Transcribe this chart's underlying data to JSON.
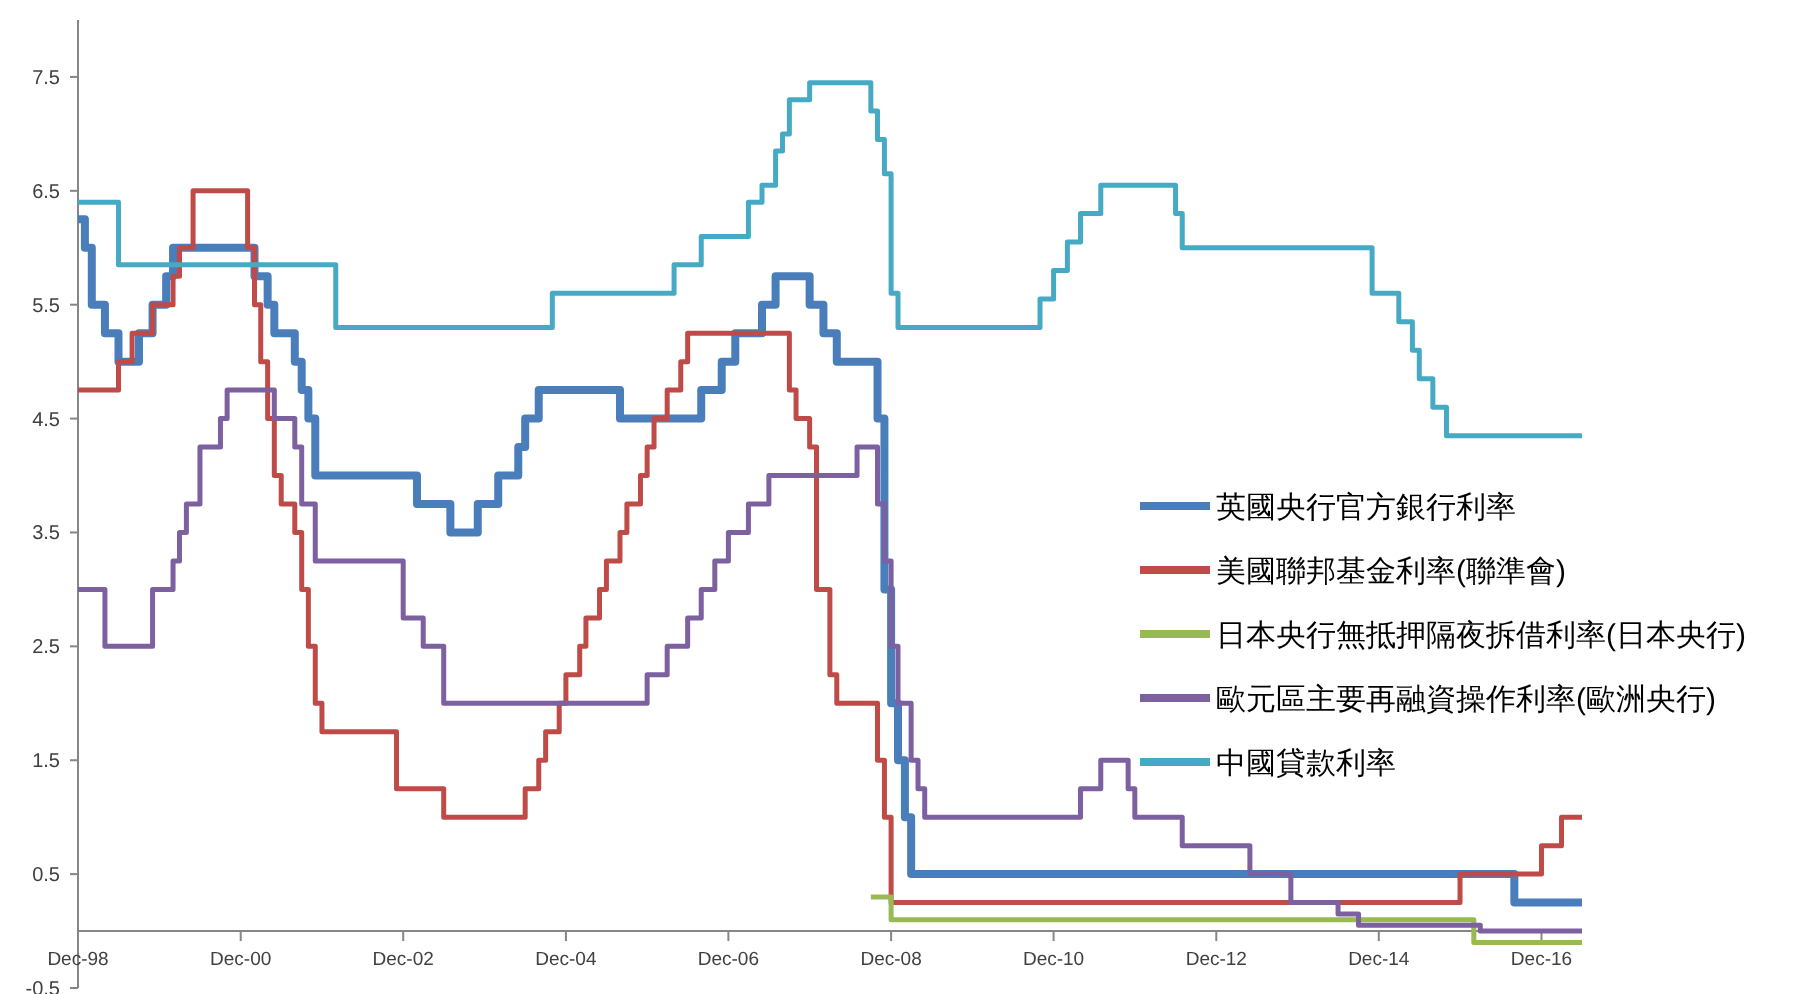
{
  "chart_data": {
    "type": "step",
    "legend": "right",
    "xlim": [
      "1998-12",
      "2017-06"
    ],
    "xticks": [
      {
        "value": "1998-12",
        "label": "Dec-98"
      },
      {
        "value": "2000-12",
        "label": "Dec-00"
      },
      {
        "value": "2002-12",
        "label": "Dec-02"
      },
      {
        "value": "2004-12",
        "label": "Dec-04"
      },
      {
        "value": "2006-12",
        "label": "Dec-06"
      },
      {
        "value": "2008-12",
        "label": "Dec-08"
      },
      {
        "value": "2010-12",
        "label": "Dec-10"
      },
      {
        "value": "2012-12",
        "label": "Dec-12"
      },
      {
        "value": "2014-12",
        "label": "Dec-14"
      },
      {
        "value": "2016-12",
        "label": "Dec-16"
      }
    ],
    "ylim": [
      -0.5,
      8
    ],
    "yticks": [
      -0.5,
      0.5,
      1.5,
      2.5,
      3.5,
      4.5,
      5.5,
      6.5,
      7.5
    ],
    "series": [
      {
        "name": "英國央行官方銀行利率",
        "color": "#4a7ebb",
        "x": [
          "1998-12",
          "1999-01",
          "1999-02",
          "1999-04",
          "1999-06",
          "1999-09",
          "1999-11",
          "2000-01",
          "2000-02",
          "2001-02",
          "2001-04",
          "2001-05",
          "2001-08",
          "2001-09",
          "2001-10",
          "2001-11",
          "2003-02",
          "2003-07",
          "2003-11",
          "2004-02",
          "2004-05",
          "2004-06",
          "2004-08",
          "2005-08",
          "2006-08",
          "2006-11",
          "2007-01",
          "2007-05",
          "2007-07",
          "2007-12",
          "2008-02",
          "2008-04",
          "2008-10",
          "2008-11",
          "2008-12",
          "2009-01",
          "2009-02",
          "2009-03",
          "2016-08",
          "2017-06"
        ],
        "values": [
          6.25,
          6,
          5.5,
          5.25,
          5,
          5.25,
          5.5,
          5.75,
          6,
          5.75,
          5.5,
          5.25,
          5,
          4.75,
          4.5,
          4,
          3.75,
          3.5,
          3.75,
          4,
          4.25,
          4.5,
          4.75,
          4.5,
          4.75,
          5,
          5.25,
          5.5,
          5.75,
          5.5,
          5.25,
          5,
          4.5,
          3,
          2,
          1.5,
          1,
          0.5,
          0.25,
          0.25
        ]
      },
      {
        "name": "美國聯邦基金利率(聯準會)",
        "color": "#be4b48",
        "x": [
          "1998-12",
          "1999-06",
          "1999-08",
          "1999-11",
          "2000-02",
          "2000-03",
          "2000-05",
          "2001-01",
          "2001-02",
          "2001-03",
          "2001-04",
          "2001-05",
          "2001-06",
          "2001-08",
          "2001-09",
          "2001-10",
          "2001-11",
          "2001-12",
          "2002-11",
          "2003-06",
          "2004-06",
          "2004-08",
          "2004-09",
          "2004-11",
          "2004-12",
          "2005-02",
          "2005-03",
          "2005-05",
          "2005-06",
          "2005-08",
          "2005-09",
          "2005-11",
          "2005-12",
          "2006-01",
          "2006-03",
          "2006-05",
          "2006-06",
          "2007-09",
          "2007-10",
          "2007-12",
          "2008-01",
          "2008-03",
          "2008-04",
          "2008-10",
          "2008-11",
          "2008-12",
          "2015-12",
          "2016-12",
          "2017-03",
          "2017-06"
        ],
        "values": [
          4.75,
          5,
          5.25,
          5.5,
          5.75,
          6,
          6.5,
          6,
          5.5,
          5,
          4.5,
          4,
          3.75,
          3.5,
          3,
          2.5,
          2,
          1.75,
          1.25,
          1,
          1.25,
          1.5,
          1.75,
          2,
          2.25,
          2.5,
          2.75,
          3,
          3.25,
          3.5,
          3.75,
          4,
          4.25,
          4.5,
          4.75,
          5,
          5.25,
          4.75,
          4.5,
          4.25,
          3,
          2.25,
          2,
          1.5,
          1,
          0.25,
          0.5,
          0.75,
          1,
          1
        ]
      },
      {
        "name": "日本央行無抵押隔夜拆借利率(日本央行)",
        "color": "#98b954",
        "x": [
          "2008-09",
          "2008-12",
          "2016-02",
          "2017-06"
        ],
        "values": [
          0.3,
          0.1,
          -0.1,
          -0.1
        ]
      },
      {
        "name": "歐元區主要再融資操作利率(歐洲央行)",
        "color": "#7d60a0",
        "x": [
          "1998-12",
          "1999-04",
          "1999-11",
          "2000-02",
          "2000-03",
          "2000-04",
          "2000-06",
          "2000-09",
          "2000-10",
          "2001-05",
          "2001-08",
          "2001-09",
          "2001-11",
          "2002-12",
          "2003-03",
          "2003-06",
          "2005-12",
          "2006-03",
          "2006-06",
          "2006-08",
          "2006-10",
          "2006-12",
          "2007-03",
          "2007-06",
          "2008-07",
          "2008-10",
          "2008-11",
          "2008-12",
          "2009-01",
          "2009-03",
          "2009-04",
          "2009-05",
          "2011-04",
          "2011-07",
          "2011-11",
          "2011-12",
          "2012-07",
          "2013-05",
          "2013-11",
          "2014-06",
          "2014-09",
          "2016-03",
          "2017-06"
        ],
        "values": [
          3,
          2.5,
          3,
          3.25,
          3.5,
          3.75,
          4.25,
          4.5,
          4.75,
          4.5,
          4.25,
          3.75,
          3.25,
          2.75,
          2.5,
          2,
          2.25,
          2.5,
          2.75,
          3,
          3.25,
          3.5,
          3.75,
          4,
          4.25,
          3.75,
          3.25,
          2.5,
          2,
          1.5,
          1.25,
          1,
          1.25,
          1.5,
          1.25,
          1,
          0.75,
          0.5,
          0.25,
          0.15,
          0.05,
          0,
          0
        ]
      },
      {
        "name": "中國貸款利率",
        "color": "#46aac5",
        "x": [
          "1998-12",
          "1999-06",
          "2002-02",
          "2004-10",
          "2006-04",
          "2006-08",
          "2007-03",
          "2007-05",
          "2007-07",
          "2007-08",
          "2007-09",
          "2007-12",
          "2008-09",
          "2008-10",
          "2008-11",
          "2008-12",
          "2009-01",
          "2010-10",
          "2010-12",
          "2011-02",
          "2011-04",
          "2011-07",
          "2012-06",
          "2012-07",
          "2014-11",
          "2015-03",
          "2015-05",
          "2015-06",
          "2015-08",
          "2015-10",
          "2017-06"
        ],
        "values": [
          6.4,
          5.85,
          5.3,
          5.6,
          5.85,
          6.1,
          6.4,
          6.55,
          6.85,
          7,
          7.3,
          7.45,
          7.2,
          6.95,
          6.65,
          5.6,
          5.3,
          5.55,
          5.8,
          6.05,
          6.3,
          6.55,
          6.3,
          6,
          5.6,
          5.35,
          5.1,
          4.85,
          4.6,
          4.35,
          4.35
        ]
      }
    ]
  }
}
